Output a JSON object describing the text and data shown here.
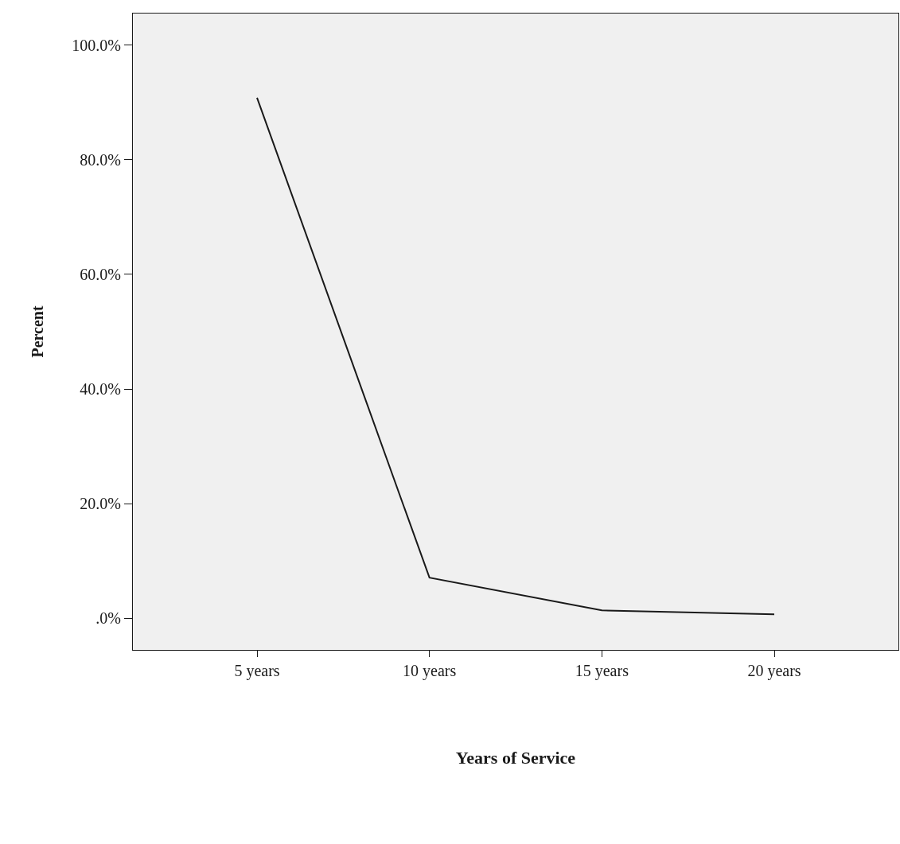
{
  "chart_data": {
    "type": "line",
    "xlabel": "Years of Service",
    "ylabel": "Percent",
    "categories": [
      "5 years",
      "10 years",
      "15 years",
      "20 years"
    ],
    "series": [
      {
        "color": "#1a1a1a",
        "values": [
          90.8,
          7.1,
          1.4,
          0.7
        ]
      }
    ],
    "ylim": [
      -5.5,
      105.5
    ],
    "yticks": [
      {
        "value": 0,
        "label": ".0%"
      },
      {
        "value": 20,
        "label": "20.0%"
      },
      {
        "value": 40,
        "label": "40.0%"
      },
      {
        "value": 60,
        "label": "60.0%"
      },
      {
        "value": 80,
        "label": "80.0%"
      },
      {
        "value": 100,
        "label": "100.0%"
      }
    ],
    "grid": false,
    "legend": false,
    "marker": "none",
    "line_style": "solid"
  }
}
